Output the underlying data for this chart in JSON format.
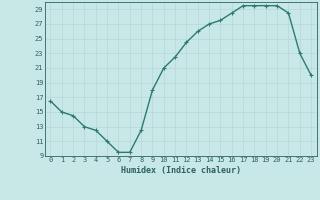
{
  "x": [
    0,
    1,
    2,
    3,
    4,
    5,
    6,
    7,
    8,
    9,
    10,
    11,
    12,
    13,
    14,
    15,
    16,
    17,
    18,
    19,
    20,
    21,
    22,
    23
  ],
  "y": [
    16.5,
    15.0,
    14.5,
    13.0,
    12.5,
    11.0,
    9.5,
    9.5,
    12.5,
    18.0,
    21.0,
    22.5,
    24.5,
    26.0,
    27.0,
    27.5,
    28.5,
    29.5,
    29.5,
    29.5,
    29.5,
    28.5,
    23.0,
    20.0
  ],
  "bg_color": "#c8e8e8",
  "line_color": "#2d7a6e",
  "marker_color": "#2d7a6e",
  "grid_color": "#b8d8d8",
  "xlabel": "Humidex (Indice chaleur)",
  "ylim": [
    9,
    30
  ],
  "xlim": [
    -0.5,
    23.5
  ],
  "yticks": [
    9,
    11,
    13,
    15,
    17,
    19,
    21,
    23,
    25,
    27,
    29
  ],
  "xticks": [
    0,
    1,
    2,
    3,
    4,
    5,
    6,
    7,
    8,
    9,
    10,
    11,
    12,
    13,
    14,
    15,
    16,
    17,
    18,
    19,
    20,
    21,
    22,
    23
  ],
  "font_color": "#2d6060",
  "linewidth": 1.0,
  "markersize": 2.5,
  "tick_fontsize": 5.0,
  "xlabel_fontsize": 6.0
}
